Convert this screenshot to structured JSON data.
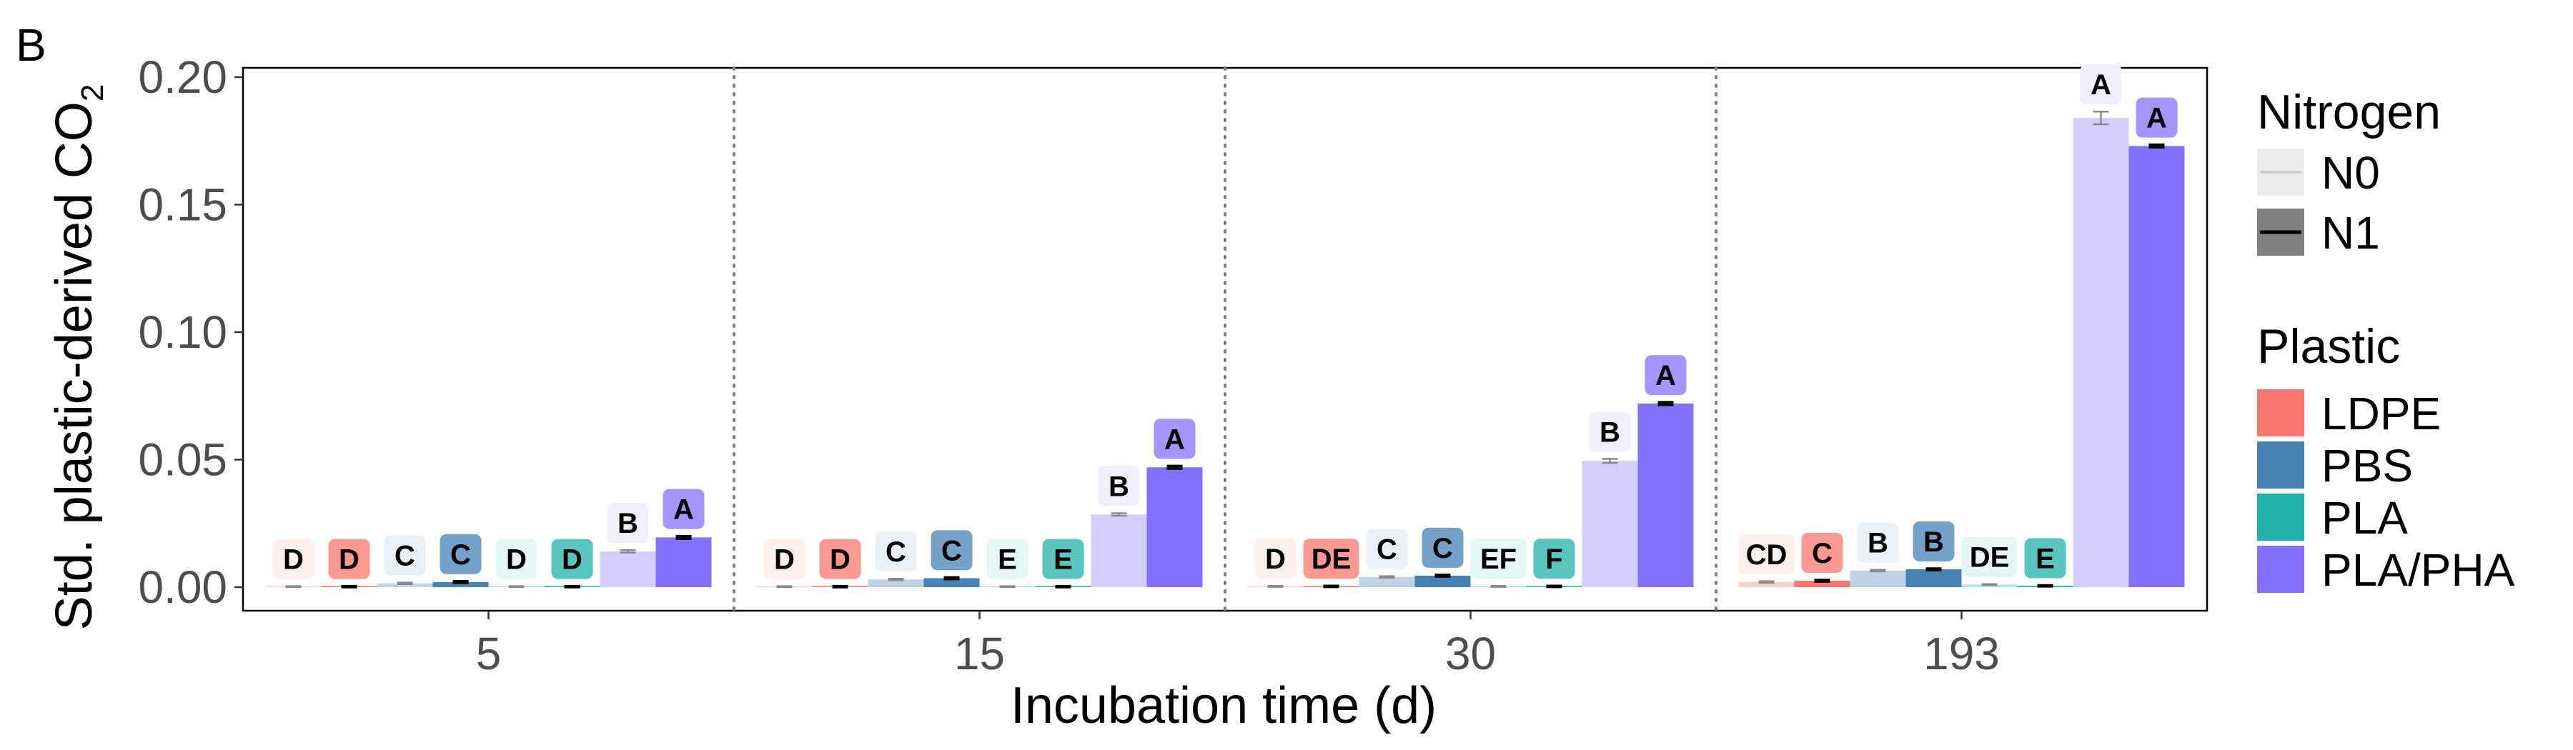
{
  "panel_label": "B",
  "colors": {
    "LDPE": "#F8766D",
    "PBS": "#4682B4",
    "PLA": "#20B2AA",
    "PLA/PHA": "#8470FF"
  },
  "chart_data": {
    "type": "bar",
    "xlabel": "Incubation time (d)",
    "ylabel_main": "Std. plastic-derived CO",
    "ylabel_sub": "2",
    "ylim": [
      0,
      0.205
    ],
    "yticks": [
      "0.00",
      "0.05",
      "0.10",
      "0.15",
      "0.20"
    ],
    "ytick_values": [
      0,
      0.05,
      0.1,
      0.15,
      0.2
    ],
    "categories": [
      "5",
      "15",
      "30",
      "193"
    ],
    "grid": false,
    "legend_position": "right",
    "legend_nitrogen": {
      "title": "Nitrogen",
      "items": [
        "N0",
        "N1"
      ]
    },
    "legend_plastic": {
      "title": "Plastic",
      "items": [
        "LDPE",
        "PBS",
        "PLA",
        "PLA/PHA"
      ]
    },
    "series": [
      {
        "plastic": "LDPE",
        "nitrogen": "N0",
        "values": [
          0.0002,
          0.0002,
          0.0003,
          0.002
        ],
        "errors": [
          0.0002,
          0.0002,
          0.0002,
          0.0003
        ],
        "letters": [
          "D",
          "D",
          "D",
          "CD"
        ]
      },
      {
        "plastic": "LDPE",
        "nitrogen": "N1",
        "values": [
          0.0002,
          0.0002,
          0.0003,
          0.0025
        ],
        "errors": [
          0.0002,
          0.0002,
          0.0002,
          0.0003
        ],
        "letters": [
          "D",
          "D",
          "DE",
          "C"
        ]
      },
      {
        "plastic": "PBS",
        "nitrogen": "N0",
        "values": [
          0.0015,
          0.003,
          0.004,
          0.0065
        ],
        "errors": [
          0.0003,
          0.0003,
          0.0003,
          0.0003
        ],
        "letters": [
          "C",
          "C",
          "C",
          "B"
        ]
      },
      {
        "plastic": "PBS",
        "nitrogen": "N1",
        "values": [
          0.002,
          0.0035,
          0.0045,
          0.007
        ],
        "errors": [
          0.0003,
          0.0003,
          0.0003,
          0.0003
        ],
        "letters": [
          "C",
          "C",
          "C",
          "B"
        ]
      },
      {
        "plastic": "PLA",
        "nitrogen": "N0",
        "values": [
          0.0002,
          0.0002,
          0.0003,
          0.001
        ],
        "errors": [
          0.0002,
          0.0002,
          0.0002,
          0.0002
        ],
        "letters": [
          "D",
          "E",
          "EF",
          "DE"
        ]
      },
      {
        "plastic": "PLA",
        "nitrogen": "N1",
        "values": [
          0.0002,
          0.0002,
          0.0003,
          0.0005
        ],
        "errors": [
          0.0002,
          0.0002,
          0.0002,
          0.0002
        ],
        "letters": [
          "D",
          "E",
          "F",
          "E"
        ]
      },
      {
        "plastic": "PLA/PHA",
        "nitrogen": "N0",
        "values": [
          0.014,
          0.0285,
          0.0495,
          0.184
        ],
        "errors": [
          0.0005,
          0.0005,
          0.0008,
          0.0025
        ],
        "letters": [
          "B",
          "B",
          "B",
          "A"
        ]
      },
      {
        "plastic": "PLA/PHA",
        "nitrogen": "N1",
        "values": [
          0.0195,
          0.047,
          0.072,
          0.173
        ],
        "errors": [
          0.0005,
          0.0005,
          0.0005,
          0.0005
        ],
        "letters": [
          "A",
          "A",
          "A",
          "A"
        ]
      }
    ]
  }
}
